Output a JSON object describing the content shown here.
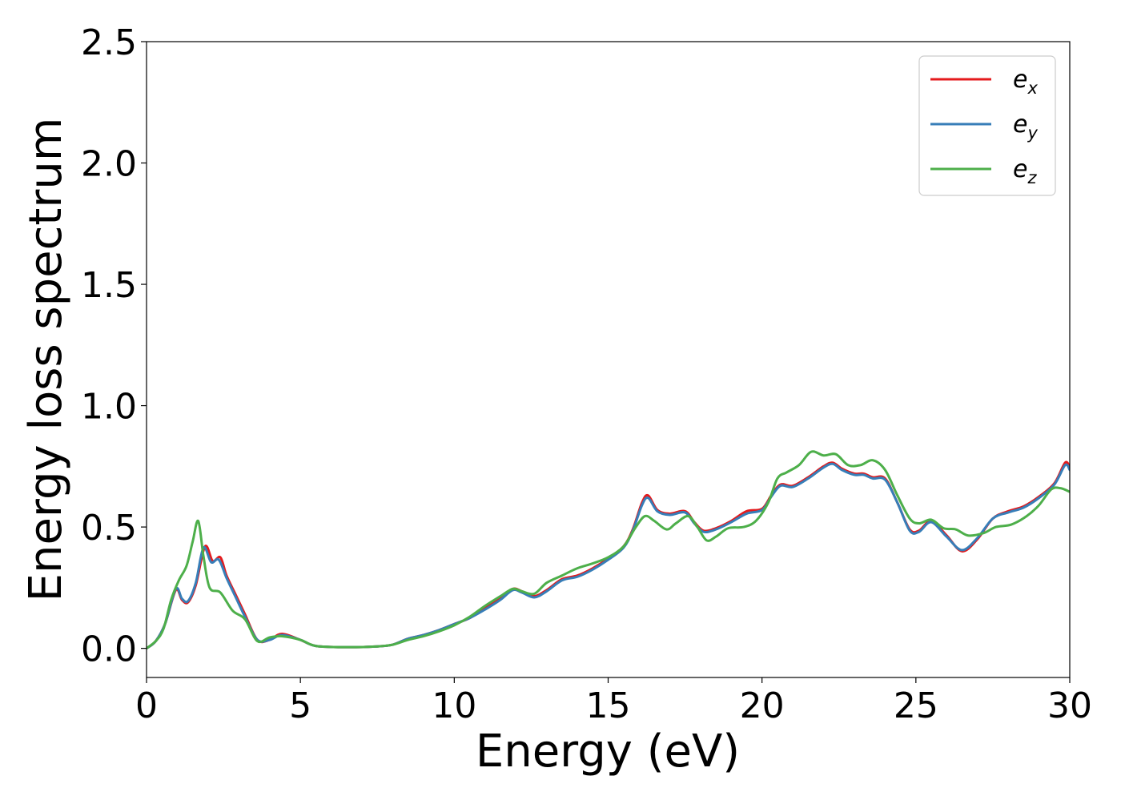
{
  "chart_data": {
    "type": "line",
    "title": "",
    "xlabel": "Energy (eV)",
    "ylabel": "Energy loss spectrum",
    "xlim": [
      0,
      30
    ],
    "ylim": [
      -0.12,
      2.5
    ],
    "xticks": [
      0,
      5,
      10,
      15,
      20,
      25,
      30
    ],
    "xtick_labels": [
      "0",
      "5",
      "10",
      "15",
      "20",
      "25",
      "30"
    ],
    "yticks": [
      0.0,
      0.5,
      1.0,
      1.5,
      2.0,
      2.5
    ],
    "ytick_labels": [
      "0.0",
      "0.5",
      "1.0",
      "1.5",
      "2.0",
      "2.5"
    ],
    "grid": false,
    "legend_position": "top-right",
    "series": [
      {
        "name": "e_x",
        "legend_base": "e",
        "legend_sub": "x",
        "color": "#e41a1c",
        "points": [
          [
            0,
            0.0
          ],
          [
            0.3,
            0.03
          ],
          [
            0.6,
            0.1
          ],
          [
            0.95,
            0.24
          ],
          [
            1.15,
            0.2
          ],
          [
            1.35,
            0.19
          ],
          [
            1.6,
            0.26
          ],
          [
            1.9,
            0.42
          ],
          [
            2.15,
            0.36
          ],
          [
            2.4,
            0.375
          ],
          [
            2.6,
            0.3
          ],
          [
            2.9,
            0.22
          ],
          [
            3.2,
            0.14
          ],
          [
            3.6,
            0.035
          ],
          [
            4.0,
            0.035
          ],
          [
            4.4,
            0.06
          ],
          [
            5.0,
            0.035
          ],
          [
            5.5,
            0.01
          ],
          [
            6.5,
            0.005
          ],
          [
            7.5,
            0.008
          ],
          [
            8.0,
            0.015
          ],
          [
            8.5,
            0.04
          ],
          [
            9.0,
            0.055
          ],
          [
            9.5,
            0.075
          ],
          [
            10.0,
            0.1
          ],
          [
            10.5,
            0.125
          ],
          [
            11.0,
            0.165
          ],
          [
            11.5,
            0.205
          ],
          [
            11.9,
            0.245
          ],
          [
            12.2,
            0.235
          ],
          [
            12.6,
            0.215
          ],
          [
            13.0,
            0.24
          ],
          [
            13.5,
            0.285
          ],
          [
            14.0,
            0.3
          ],
          [
            14.5,
            0.33
          ],
          [
            15.0,
            0.37
          ],
          [
            15.5,
            0.42
          ],
          [
            15.8,
            0.49
          ],
          [
            16.1,
            0.6
          ],
          [
            16.3,
            0.63
          ],
          [
            16.6,
            0.57
          ],
          [
            17.0,
            0.555
          ],
          [
            17.5,
            0.565
          ],
          [
            17.8,
            0.52
          ],
          [
            18.1,
            0.485
          ],
          [
            18.5,
            0.495
          ],
          [
            19.0,
            0.525
          ],
          [
            19.5,
            0.565
          ],
          [
            20.0,
            0.575
          ],
          [
            20.3,
            0.63
          ],
          [
            20.6,
            0.675
          ],
          [
            21.0,
            0.67
          ],
          [
            21.5,
            0.705
          ],
          [
            22.0,
            0.75
          ],
          [
            22.3,
            0.765
          ],
          [
            22.6,
            0.74
          ],
          [
            23.0,
            0.72
          ],
          [
            23.3,
            0.72
          ],
          [
            23.6,
            0.705
          ],
          [
            24.0,
            0.7
          ],
          [
            24.4,
            0.6
          ],
          [
            24.8,
            0.49
          ],
          [
            25.1,
            0.485
          ],
          [
            25.5,
            0.525
          ],
          [
            26.0,
            0.465
          ],
          [
            26.5,
            0.4
          ],
          [
            27.0,
            0.45
          ],
          [
            27.5,
            0.535
          ],
          [
            28.0,
            0.565
          ],
          [
            28.5,
            0.585
          ],
          [
            29.0,
            0.625
          ],
          [
            29.5,
            0.68
          ],
          [
            29.85,
            0.765
          ],
          [
            30.0,
            0.745
          ]
        ]
      },
      {
        "name": "e_y",
        "legend_base": "e",
        "legend_sub": "y",
        "color": "#377eb8",
        "points": [
          [
            0,
            0.0
          ],
          [
            0.3,
            0.03
          ],
          [
            0.6,
            0.1
          ],
          [
            0.95,
            0.245
          ],
          [
            1.15,
            0.205
          ],
          [
            1.35,
            0.195
          ],
          [
            1.6,
            0.27
          ],
          [
            1.85,
            0.415
          ],
          [
            2.1,
            0.355
          ],
          [
            2.35,
            0.365
          ],
          [
            2.6,
            0.29
          ],
          [
            2.9,
            0.21
          ],
          [
            3.2,
            0.13
          ],
          [
            3.6,
            0.035
          ],
          [
            4.0,
            0.035
          ],
          [
            4.4,
            0.055
          ],
          [
            5.0,
            0.035
          ],
          [
            5.5,
            0.01
          ],
          [
            6.5,
            0.005
          ],
          [
            7.5,
            0.008
          ],
          [
            8.0,
            0.015
          ],
          [
            8.5,
            0.04
          ],
          [
            9.0,
            0.055
          ],
          [
            9.5,
            0.075
          ],
          [
            10.0,
            0.1
          ],
          [
            10.5,
            0.125
          ],
          [
            11.0,
            0.16
          ],
          [
            11.5,
            0.2
          ],
          [
            11.9,
            0.24
          ],
          [
            12.2,
            0.23
          ],
          [
            12.6,
            0.21
          ],
          [
            13.0,
            0.235
          ],
          [
            13.5,
            0.28
          ],
          [
            14.0,
            0.295
          ],
          [
            14.5,
            0.325
          ],
          [
            15.0,
            0.365
          ],
          [
            15.5,
            0.415
          ],
          [
            15.8,
            0.485
          ],
          [
            16.1,
            0.59
          ],
          [
            16.3,
            0.62
          ],
          [
            16.6,
            0.565
          ],
          [
            17.0,
            0.55
          ],
          [
            17.5,
            0.56
          ],
          [
            17.8,
            0.515
          ],
          [
            18.1,
            0.48
          ],
          [
            18.5,
            0.49
          ],
          [
            19.0,
            0.52
          ],
          [
            19.5,
            0.555
          ],
          [
            20.0,
            0.57
          ],
          [
            20.3,
            0.625
          ],
          [
            20.6,
            0.67
          ],
          [
            21.0,
            0.665
          ],
          [
            21.5,
            0.7
          ],
          [
            22.0,
            0.745
          ],
          [
            22.3,
            0.76
          ],
          [
            22.6,
            0.735
          ],
          [
            23.0,
            0.715
          ],
          [
            23.3,
            0.715
          ],
          [
            23.6,
            0.7
          ],
          [
            24.0,
            0.695
          ],
          [
            24.4,
            0.6
          ],
          [
            24.8,
            0.485
          ],
          [
            25.1,
            0.48
          ],
          [
            25.5,
            0.52
          ],
          [
            26.0,
            0.46
          ],
          [
            26.5,
            0.405
          ],
          [
            27.0,
            0.455
          ],
          [
            27.5,
            0.535
          ],
          [
            28.0,
            0.56
          ],
          [
            28.5,
            0.58
          ],
          [
            29.0,
            0.62
          ],
          [
            29.5,
            0.675
          ],
          [
            29.85,
            0.755
          ],
          [
            30.0,
            0.735
          ]
        ]
      },
      {
        "name": "e_z",
        "legend_base": "e",
        "legend_sub": "z",
        "color": "#4daf4a",
        "points": [
          [
            0,
            0.0
          ],
          [
            0.3,
            0.03
          ],
          [
            0.55,
            0.08
          ],
          [
            0.8,
            0.2
          ],
          [
            1.05,
            0.28
          ],
          [
            1.3,
            0.34
          ],
          [
            1.5,
            0.44
          ],
          [
            1.68,
            0.525
          ],
          [
            1.85,
            0.38
          ],
          [
            2.05,
            0.25
          ],
          [
            2.4,
            0.23
          ],
          [
            2.8,
            0.155
          ],
          [
            3.2,
            0.12
          ],
          [
            3.6,
            0.03
          ],
          [
            4.0,
            0.045
          ],
          [
            4.4,
            0.05
          ],
          [
            5.0,
            0.035
          ],
          [
            5.5,
            0.01
          ],
          [
            6.5,
            0.005
          ],
          [
            7.5,
            0.008
          ],
          [
            8.0,
            0.015
          ],
          [
            8.5,
            0.035
          ],
          [
            9.0,
            0.05
          ],
          [
            9.5,
            0.07
          ],
          [
            10.0,
            0.095
          ],
          [
            10.5,
            0.13
          ],
          [
            11.0,
            0.175
          ],
          [
            11.5,
            0.215
          ],
          [
            11.9,
            0.245
          ],
          [
            12.2,
            0.235
          ],
          [
            12.6,
            0.225
          ],
          [
            13.0,
            0.27
          ],
          [
            13.5,
            0.3
          ],
          [
            14.0,
            0.33
          ],
          [
            14.5,
            0.35
          ],
          [
            15.0,
            0.375
          ],
          [
            15.5,
            0.42
          ],
          [
            15.9,
            0.5
          ],
          [
            16.2,
            0.545
          ],
          [
            16.5,
            0.525
          ],
          [
            16.9,
            0.49
          ],
          [
            17.2,
            0.515
          ],
          [
            17.6,
            0.545
          ],
          [
            17.9,
            0.5
          ],
          [
            18.2,
            0.445
          ],
          [
            18.5,
            0.46
          ],
          [
            18.9,
            0.495
          ],
          [
            19.4,
            0.5
          ],
          [
            19.8,
            0.525
          ],
          [
            20.2,
            0.6
          ],
          [
            20.5,
            0.7
          ],
          [
            20.8,
            0.725
          ],
          [
            21.2,
            0.755
          ],
          [
            21.6,
            0.81
          ],
          [
            22.0,
            0.795
          ],
          [
            22.4,
            0.8
          ],
          [
            22.8,
            0.755
          ],
          [
            23.2,
            0.755
          ],
          [
            23.6,
            0.775
          ],
          [
            24.0,
            0.735
          ],
          [
            24.4,
            0.63
          ],
          [
            24.8,
            0.535
          ],
          [
            25.1,
            0.515
          ],
          [
            25.5,
            0.53
          ],
          [
            25.9,
            0.495
          ],
          [
            26.3,
            0.49
          ],
          [
            26.7,
            0.465
          ],
          [
            27.2,
            0.475
          ],
          [
            27.6,
            0.5
          ],
          [
            28.1,
            0.51
          ],
          [
            28.6,
            0.545
          ],
          [
            29.0,
            0.59
          ],
          [
            29.4,
            0.655
          ],
          [
            29.7,
            0.66
          ],
          [
            30.0,
            0.645
          ]
        ]
      }
    ]
  }
}
